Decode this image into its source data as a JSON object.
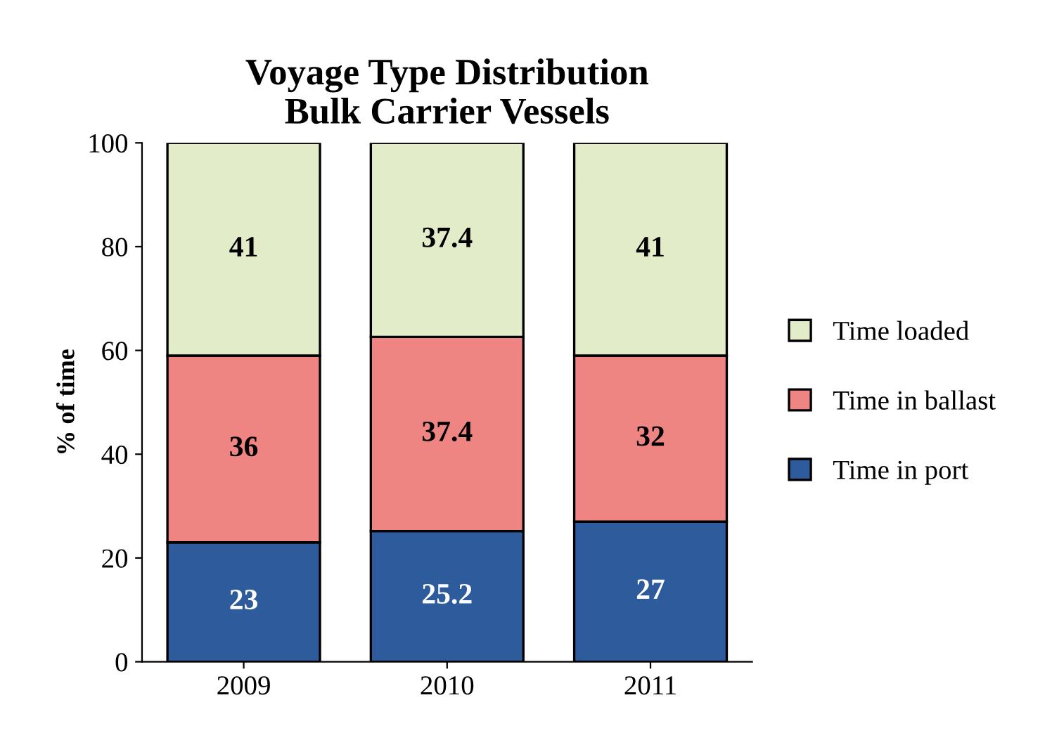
{
  "chart_data": {
    "type": "bar",
    "title": "Voyage Type Distribution\nBulk Carrier Vessels",
    "ylabel": "% of time",
    "categories": [
      "2009",
      "2010",
      "2011"
    ],
    "stacked": true,
    "data_labels": true,
    "legend": "right",
    "ylim": [
      0,
      100
    ],
    "yticks": [
      0,
      20,
      40,
      60,
      80,
      100
    ],
    "series": [
      {
        "name": "Time in port",
        "color": "#2d5b9b",
        "values": [
          23,
          25.2,
          27
        ]
      },
      {
        "name": "Time in ballast",
        "color": "#ef8582",
        "values": [
          36,
          37.4,
          32
        ]
      },
      {
        "name": "Time loaded",
        "color": "#e3ecc9",
        "values": [
          41,
          37.4,
          41
        ]
      }
    ]
  }
}
